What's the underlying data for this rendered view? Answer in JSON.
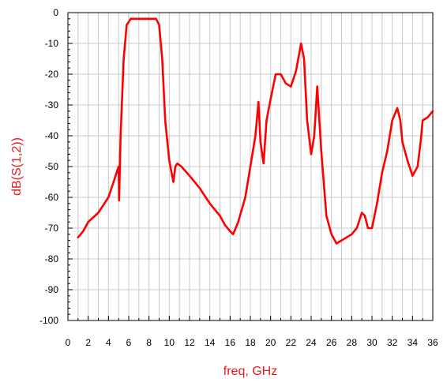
{
  "chart_data": {
    "type": "line",
    "title": "",
    "xlabel": "freq, GHz",
    "ylabel": "dB(S(1,2))",
    "xlim": [
      0,
      36
    ],
    "ylim": [
      -100,
      0
    ],
    "xticks": [
      0,
      2,
      4,
      6,
      8,
      10,
      12,
      14,
      16,
      18,
      20,
      22,
      24,
      26,
      28,
      30,
      32,
      34,
      36
    ],
    "yticks": [
      0,
      -10,
      -20,
      -30,
      -40,
      -50,
      -60,
      -70,
      -80,
      -90,
      -100
    ],
    "grid": true,
    "colors": {
      "series": "#ff0000",
      "axis_label": "#e8191f",
      "grid": "#c8c8c8",
      "axis": "#000000"
    },
    "series": [
      {
        "x": [
          1.0,
          1.5,
          2.0,
          3.0,
          4.0,
          4.5,
          4.8,
          5.0,
          5.05,
          5.2,
          5.5,
          5.8,
          6.2,
          7.0,
          8.0,
          8.7,
          9.0,
          9.3,
          9.6,
          10.0,
          10.4,
          10.6,
          10.8,
          11.2,
          12.0,
          13.0,
          14.0,
          15.0,
          15.5,
          16.0,
          16.3,
          16.8,
          17.5,
          18.0,
          18.5,
          18.8,
          19.0,
          19.3,
          19.6,
          20.0,
          20.5,
          21.0,
          21.5,
          22.0,
          22.5,
          23.0,
          23.3,
          23.6,
          24.0,
          24.3,
          24.6,
          25.0,
          25.5,
          26.0,
          26.5,
          27.0,
          27.5,
          28.0,
          28.5,
          29.0,
          29.3,
          29.6,
          30.0,
          30.5,
          31.0,
          31.5,
          32.0,
          32.5,
          32.8,
          33.0,
          33.5,
          34.0,
          34.5,
          34.8,
          35.0,
          35.5,
          36.0
        ],
        "values": [
          -73,
          -71,
          -68,
          -65,
          -60,
          -55,
          -52,
          -50,
          -61,
          -40,
          -15,
          -4,
          -2,
          -2,
          -2,
          -2,
          -4,
          -15,
          -35,
          -48,
          -55,
          -50,
          -49,
          -50,
          -53,
          -57,
          -62,
          -66,
          -69,
          -71,
          -72,
          -68,
          -60,
          -50,
          -40,
          -29,
          -42,
          -49,
          -35,
          -28,
          -20,
          -20,
          -23,
          -24,
          -19,
          -10,
          -15,
          -35,
          -46,
          -40,
          -24,
          -45,
          -66,
          -72,
          -75,
          -74,
          -73,
          -72,
          -70,
          -65,
          -66,
          -70,
          -70,
          -62,
          -52,
          -45,
          -35,
          -31,
          -35,
          -42,
          -48,
          -53,
          -50,
          -42,
          -35,
          -34,
          -32
        ]
      }
    ]
  }
}
